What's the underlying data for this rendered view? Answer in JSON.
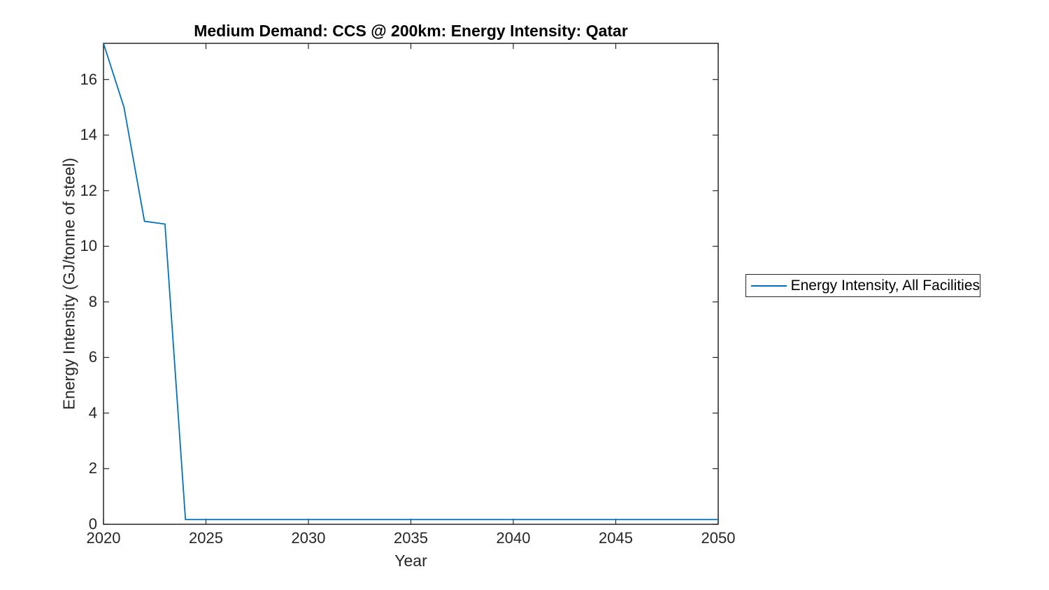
{
  "figure": {
    "background": "#ffffff"
  },
  "chart_data": {
    "type": "line",
    "title": "Medium Demand: CCS @ 200km: Energy Intensity: Qatar",
    "xlabel": "Year",
    "ylabel": "Energy Intensity (GJ/tonne of steel)",
    "xlim": [
      2020,
      2050
    ],
    "ylim": [
      0,
      17.3
    ],
    "xticks": [
      2020,
      2025,
      2030,
      2035,
      2040,
      2045,
      2050
    ],
    "yticks": [
      0,
      2,
      4,
      6,
      8,
      10,
      12,
      14,
      16
    ],
    "grid": false,
    "axis_color": "#262626",
    "legend": {
      "position": "right-outside",
      "border_color": "#262626",
      "entries": [
        "Energy Intensity, All Facilities"
      ]
    },
    "series": [
      {
        "name": "Energy Intensity, All Facilities",
        "color": "#0072BD",
        "x": [
          2020,
          2021,
          2022,
          2023,
          2024,
          2025,
          2026,
          2027,
          2028,
          2029,
          2030,
          2031,
          2032,
          2033,
          2034,
          2035,
          2036,
          2037,
          2038,
          2039,
          2040,
          2041,
          2042,
          2043,
          2044,
          2045,
          2046,
          2047,
          2048,
          2049,
          2050
        ],
        "y": [
          17.3,
          15.0,
          10.9,
          10.8,
          0.17,
          0.17,
          0.17,
          0.17,
          0.17,
          0.17,
          0.17,
          0.17,
          0.17,
          0.17,
          0.17,
          0.17,
          0.17,
          0.17,
          0.17,
          0.17,
          0.17,
          0.17,
          0.17,
          0.17,
          0.17,
          0.17,
          0.17,
          0.17,
          0.17,
          0.17,
          0.17
        ]
      }
    ]
  }
}
